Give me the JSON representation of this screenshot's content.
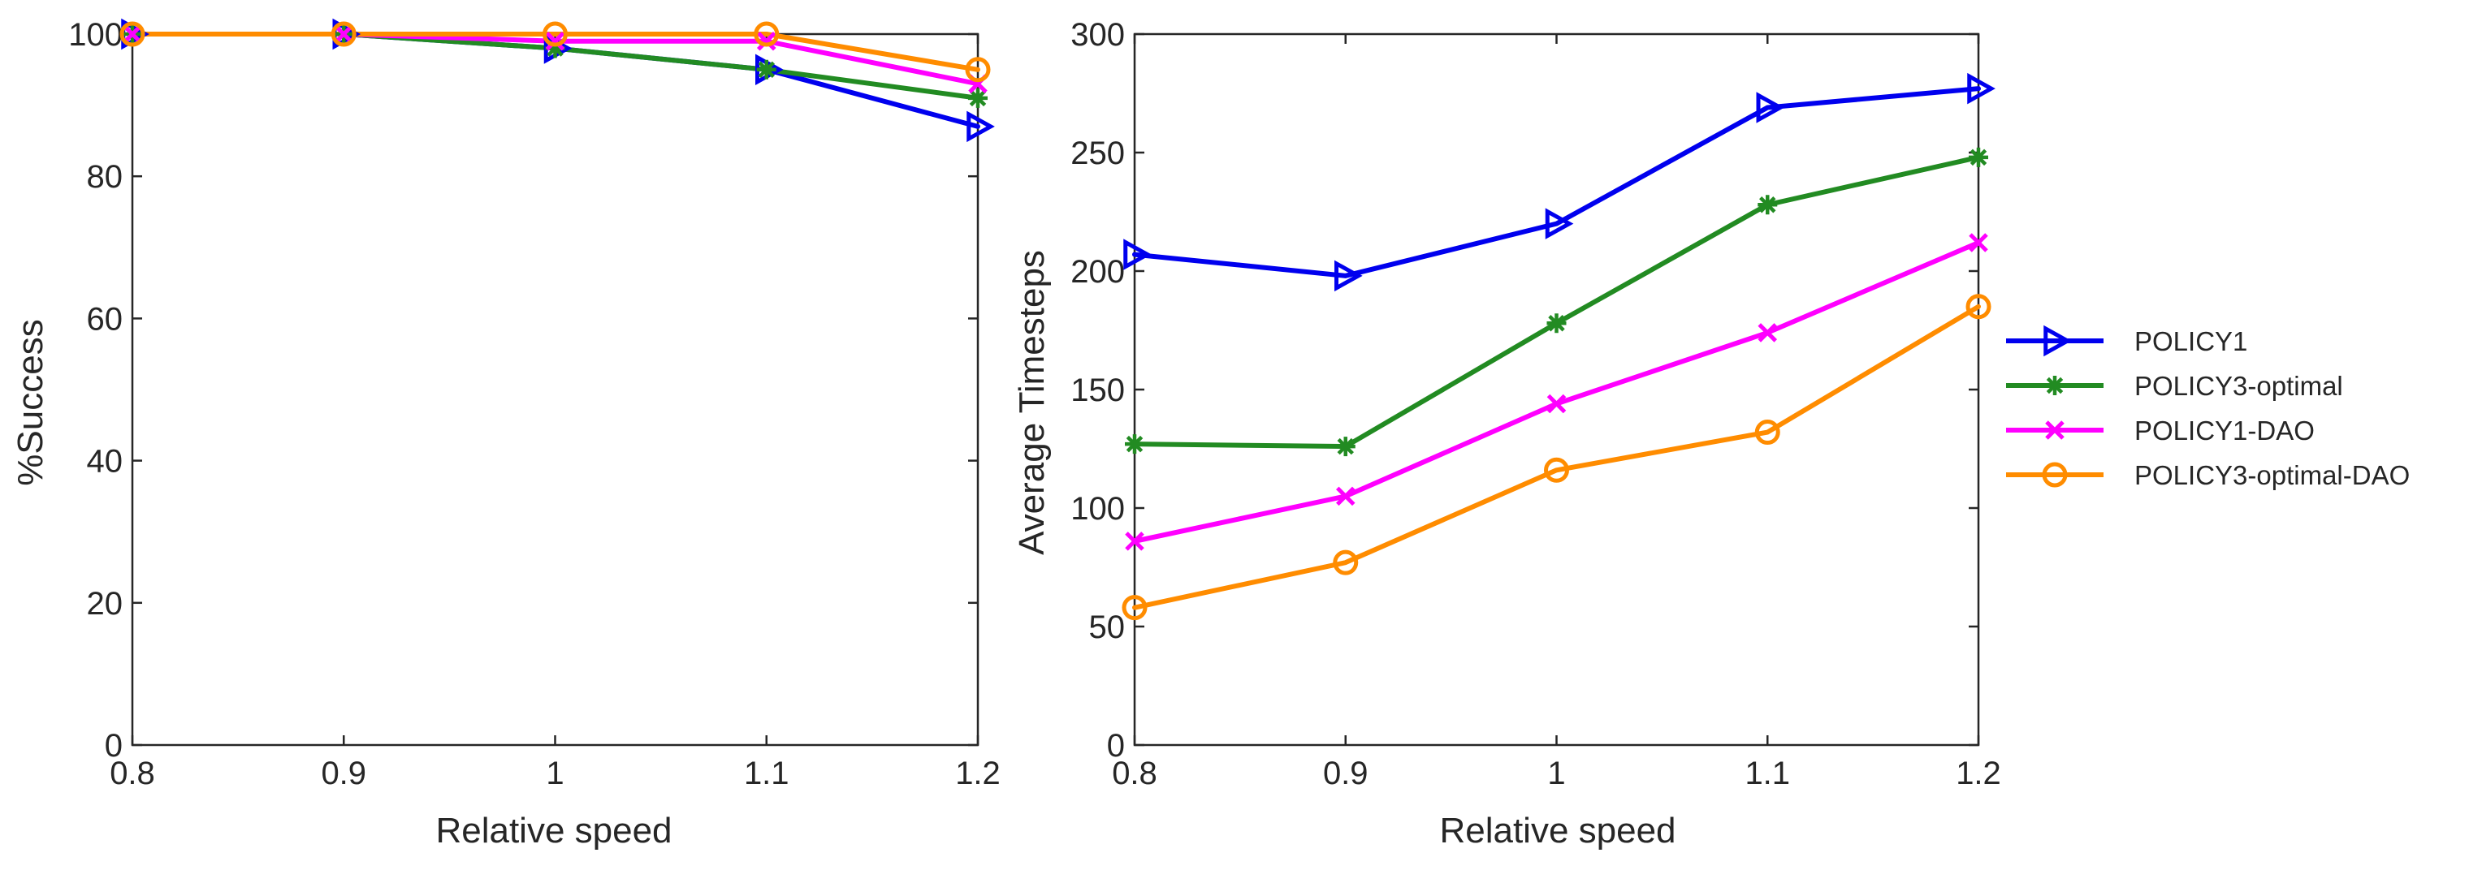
{
  "chart_data": [
    {
      "type": "line",
      "id": "success",
      "title": "",
      "xlabel": "Relative speed",
      "ylabel": "%Success",
      "xlim": [
        0.8,
        1.2
      ],
      "ylim": [
        0,
        100
      ],
      "xticks": [
        "0.8",
        "0.9",
        "1",
        "1.1",
        "1.2"
      ],
      "yticks": [
        "0",
        "20",
        "40",
        "60",
        "80",
        "100"
      ],
      "x": [
        0.8,
        0.9,
        1.0,
        1.1,
        1.2
      ],
      "grid": false,
      "series": [
        {
          "name": "POLICY1",
          "color": "#0000ee",
          "marker": "triangle-right",
          "values": [
            100,
            100,
            98,
            95,
            87
          ]
        },
        {
          "name": "POLICY3-optimal",
          "color": "#228b22",
          "marker": "asterisk",
          "values": [
            100,
            100,
            98,
            95,
            91
          ]
        },
        {
          "name": "POLICY1-DAO",
          "color": "#ff00ff",
          "marker": "x",
          "values": [
            100,
            100,
            99,
            99,
            93
          ]
        },
        {
          "name": "POLICY3-optimal-DAO",
          "color": "#ff8c00",
          "marker": "circle",
          "values": [
            100,
            100,
            100,
            100,
            95
          ]
        }
      ]
    },
    {
      "type": "line",
      "id": "timesteps",
      "title": "",
      "xlabel": "Relative speed",
      "ylabel": "Average Timesteps",
      "xlim": [
        0.8,
        1.2
      ],
      "ylim": [
        0,
        300
      ],
      "xticks": [
        "0.8",
        "0.9",
        "1",
        "1.1",
        "1.2"
      ],
      "yticks": [
        "0",
        "50",
        "100",
        "150",
        "200",
        "250",
        "300"
      ],
      "x": [
        0.8,
        0.9,
        1.0,
        1.1,
        1.2
      ],
      "grid": false,
      "legend": "right",
      "series": [
        {
          "name": "POLICY1",
          "color": "#0000ee",
          "marker": "triangle-right",
          "values": [
            207,
            198,
            220,
            269,
            277
          ]
        },
        {
          "name": "POLICY3-optimal",
          "color": "#228b22",
          "marker": "asterisk",
          "values": [
            127,
            126,
            178,
            228,
            248
          ]
        },
        {
          "name": "POLICY1-DAO",
          "color": "#ff00ff",
          "marker": "x",
          "values": [
            86,
            105,
            144,
            174,
            212
          ]
        },
        {
          "name": "POLICY3-optimal-DAO",
          "color": "#ff8c00",
          "marker": "circle",
          "values": [
            58,
            77,
            116,
            132,
            185
          ]
        }
      ]
    }
  ]
}
